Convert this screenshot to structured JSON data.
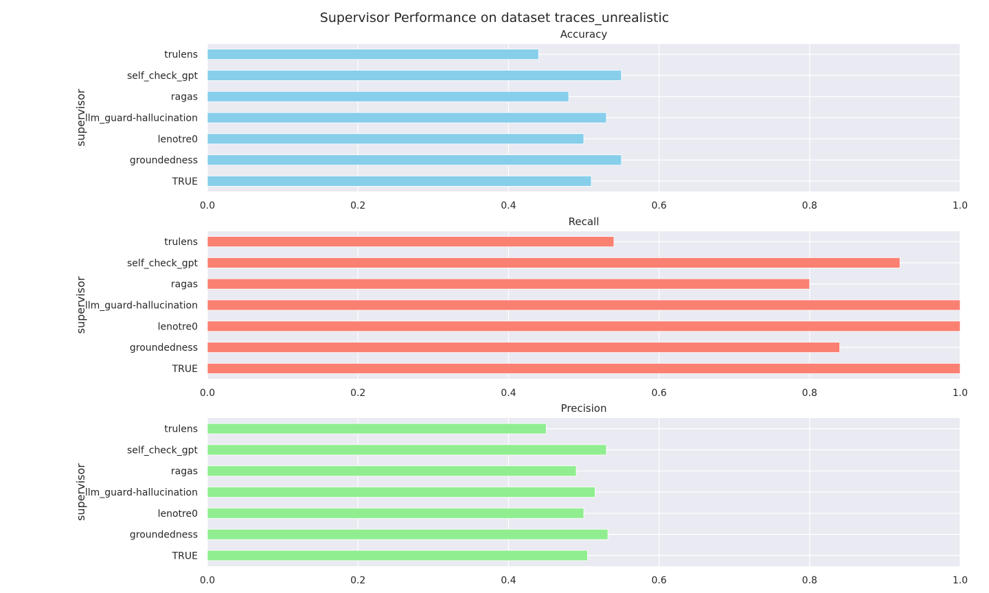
{
  "figure_title": "Supervisor Performance on dataset traces_unrealistic",
  "chart_data": [
    {
      "type": "bar",
      "orientation": "horizontal",
      "title": "Accuracy",
      "ylabel": "supervisor",
      "xlabel": "",
      "categories": [
        "trulens",
        "self_check_gpt",
        "ragas",
        "llm_guard-hallucination",
        "lenotre0",
        "groundedness",
        "TRUE"
      ],
      "values": [
        0.44,
        0.55,
        0.48,
        0.53,
        0.5,
        0.55,
        0.51
      ],
      "xlim": [
        0.0,
        1.0
      ],
      "xticks": [
        "0.0",
        "0.2",
        "0.4",
        "0.6",
        "0.8",
        "1.0"
      ],
      "color": "#87ceeb",
      "grid": true
    },
    {
      "type": "bar",
      "orientation": "horizontal",
      "title": "Recall",
      "ylabel": "supervisor",
      "xlabel": "",
      "categories": [
        "trulens",
        "self_check_gpt",
        "ragas",
        "llm_guard-hallucination",
        "lenotre0",
        "groundedness",
        "TRUE"
      ],
      "values": [
        0.54,
        0.92,
        0.8,
        1.0,
        1.0,
        0.84,
        1.0
      ],
      "xlim": [
        0.0,
        1.0
      ],
      "xticks": [
        "0.0",
        "0.2",
        "0.4",
        "0.6",
        "0.8",
        "1.0"
      ],
      "color": "#fa8072",
      "grid": true
    },
    {
      "type": "bar",
      "orientation": "horizontal",
      "title": "Precision",
      "ylabel": "supervisor",
      "xlabel": "",
      "categories": [
        "trulens",
        "self_check_gpt",
        "ragas",
        "llm_guard-hallucination",
        "lenotre0",
        "groundedness",
        "TRUE"
      ],
      "values": [
        0.45,
        0.53,
        0.49,
        0.515,
        0.5,
        0.532,
        0.505
      ],
      "xlim": [
        0.0,
        1.0
      ],
      "xticks": [
        "0.0",
        "0.2",
        "0.4",
        "0.6",
        "0.8",
        "1.0"
      ],
      "color": "#90ee90",
      "grid": true
    }
  ]
}
